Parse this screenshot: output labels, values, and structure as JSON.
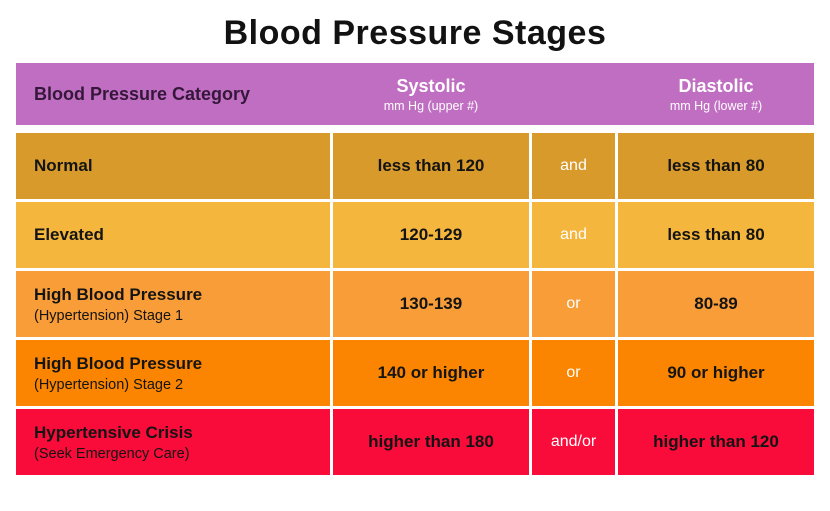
{
  "title": "Blood Pressure Stages",
  "colors": {
    "header": "#c06ec2",
    "header_category_text": "#35173a",
    "row_normal": "#d79a2b",
    "row_elevated": "#f4b63c",
    "row_stage1": "#f99d38",
    "row_stage2": "#fb8500",
    "row_crisis": "#f90b3a",
    "body_text": "#141414",
    "connector_text": "#ffffff"
  },
  "table": {
    "header": {
      "category": "Blood Pressure Category",
      "systolic_title": "Systolic",
      "systolic_sub": "mm Hg (upper #)",
      "diastolic_title": "Diastolic",
      "diastolic_sub": "mm Hg (lower #)",
      "color": "#c06ec2"
    },
    "rows": [
      {
        "category": "Normal",
        "subtitle": "",
        "systolic": "less than 120",
        "connector": "and",
        "diastolic": "less than 80",
        "color": "#d79a2b"
      },
      {
        "category": "Elevated",
        "subtitle": "",
        "systolic": "120-129",
        "connector": "and",
        "diastolic": "less than 80",
        "color": "#f4b63c"
      },
      {
        "category": "High Blood Pressure",
        "subtitle": "(Hypertension) Stage 1",
        "systolic": "130-139",
        "connector": "or",
        "diastolic": "80-89",
        "color": "#f99d38"
      },
      {
        "category": "High Blood Pressure",
        "subtitle": "(Hypertension) Stage 2",
        "systolic": "140 or higher",
        "connector": "or",
        "diastolic": "90 or higher",
        "color": "#fb8500"
      },
      {
        "category": "Hypertensive Crisis",
        "subtitle": "(Seek Emergency Care)",
        "systolic": "higher than 180",
        "connector": "and/or",
        "diastolic": "higher than 120",
        "color": "#f90b3a"
      }
    ]
  },
  "chart_data": {
    "type": "table",
    "title": "Blood Pressure Stages",
    "columns": [
      "Blood Pressure Category",
      "Systolic mm Hg (upper #)",
      "connector",
      "Diastolic mm Hg (lower #)"
    ],
    "rows": [
      [
        "Normal",
        "less than 120",
        "and",
        "less than 80"
      ],
      [
        "Elevated",
        "120-129",
        "and",
        "less than 80"
      ],
      [
        "High Blood Pressure (Hypertension) Stage 1",
        "130-139",
        "or",
        "80-89"
      ],
      [
        "High Blood Pressure (Hypertension) Stage 2",
        "140 or higher",
        "or",
        "90 or higher"
      ],
      [
        "Hypertensive Crisis (Seek Emergency Care)",
        "higher than 180",
        "and/or",
        "higher than 120"
      ]
    ],
    "row_colors": [
      "#d79a2b",
      "#f4b63c",
      "#f99d38",
      "#fb8500",
      "#f90b3a"
    ],
    "header_color": "#c06ec2",
    "legend_position": "none",
    "grid": false
  }
}
